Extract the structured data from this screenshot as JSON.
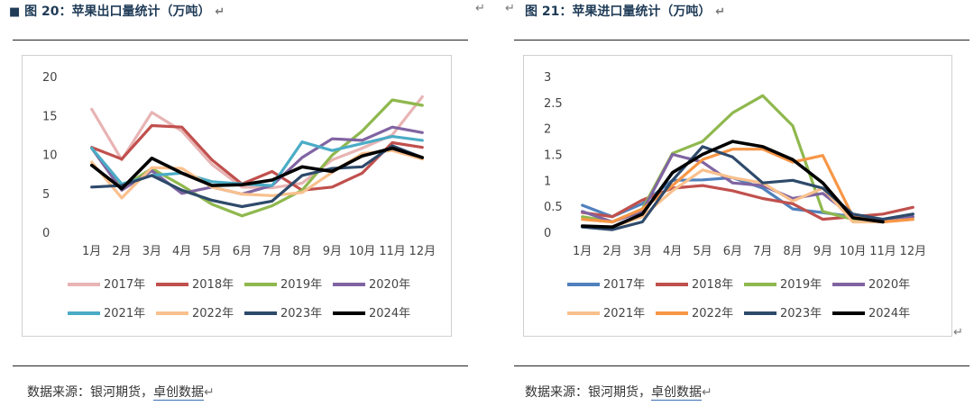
{
  "left": {
    "title_prefix": "■",
    "title": "图 20：苹果出口量统计（万吨）",
    "source_prefix": "数据来源：银河期货，",
    "source_link": "卓创数据"
  },
  "right": {
    "title": "图 21：苹果进口量统计（万吨）",
    "source_prefix": "数据来源：银河期货，",
    "source_link": "卓创数据"
  },
  "marks": {
    "para": "↵"
  },
  "chart_data": [
    {
      "type": "line",
      "title": "图 20：苹果出口量统计（万吨）",
      "categories": [
        "1月",
        "2月",
        "3月",
        "4月",
        "5月",
        "6月",
        "7月",
        "8月",
        "9月",
        "10月",
        "11月",
        "12月"
      ],
      "ylim": [
        0,
        20
      ],
      "yticks": [
        0,
        5,
        10,
        15,
        20
      ],
      "grid": false,
      "legend": "bottom",
      "series": [
        {
          "name": "2017年",
          "color": "#e8b4b4",
          "values": [
            15.8,
            9.3,
            15.4,
            13.0,
            8.7,
            5.8,
            5.7,
            6.3,
            9.3,
            10.8,
            12.5,
            17.4
          ]
        },
        {
          "name": "2018年",
          "color": "#c0504d",
          "values": [
            10.9,
            9.4,
            13.7,
            13.5,
            9.3,
            6.2,
            7.8,
            5.4,
            5.8,
            7.6,
            11.5,
            10.9
          ]
        },
        {
          "name": "2019年",
          "color": "#8fb84e",
          "values": [
            10.8,
            5.7,
            8.2,
            6.0,
            3.6,
            2.1,
            3.4,
            5.4,
            9.9,
            13.0,
            17.0,
            16.3
          ]
        },
        {
          "name": "2020年",
          "color": "#8064a2",
          "values": [
            10.8,
            5.4,
            7.9,
            5.0,
            5.8,
            4.9,
            6.0,
            9.6,
            12.0,
            11.8,
            13.5,
            12.8
          ]
        },
        {
          "name": "2021年",
          "color": "#4bacc6",
          "values": [
            10.8,
            6.2,
            7.3,
            7.6,
            6.5,
            6.2,
            6.0,
            11.6,
            10.5,
            11.4,
            12.3,
            11.8
          ]
        },
        {
          "name": "2022年",
          "color": "#f9c08d",
          "values": [
            9.0,
            4.4,
            8.3,
            8.2,
            5.8,
            4.9,
            4.7,
            5.1,
            7.7,
            10.1,
            10.5,
            9.4
          ]
        },
        {
          "name": "2023年",
          "color": "#2e4a6b",
          "values": [
            5.8,
            6.0,
            7.3,
            5.4,
            4.1,
            3.3,
            4.0,
            7.3,
            8.2,
            8.4,
            11.1,
            9.6
          ]
        },
        {
          "name": "2024年",
          "color": "#000000",
          "values": [
            8.6,
            5.6,
            9.5,
            7.6,
            6.0,
            6.1,
            6.7,
            8.4,
            7.8,
            9.8,
            10.8,
            9.6
          ]
        }
      ]
    },
    {
      "type": "line",
      "title": "图 21：苹果进口量统计（万吨）",
      "categories": [
        "1月",
        "2月",
        "3月",
        "4月",
        "5月",
        "6月",
        "7月",
        "8月",
        "9月",
        "10月",
        "11月",
        "12月"
      ],
      "ylim": [
        0,
        3
      ],
      "yticks": [
        0,
        0.5,
        1,
        1.5,
        2,
        2.5,
        3
      ],
      "grid": false,
      "legend": "bottom",
      "series": [
        {
          "name": "2017年",
          "color": "#4f81bd",
          "values": [
            0.52,
            0.3,
            0.55,
            1.0,
            1.01,
            1.05,
            0.85,
            0.45,
            0.38,
            0.3,
            0.25,
            0.35
          ]
        },
        {
          "name": "2018年",
          "color": "#c0504d",
          "values": [
            0.38,
            0.3,
            0.62,
            0.85,
            0.9,
            0.8,
            0.65,
            0.55,
            0.25,
            0.3,
            0.35,
            0.48
          ]
        },
        {
          "name": "2019年",
          "color": "#8fb84e",
          "values": [
            0.3,
            0.2,
            0.45,
            1.52,
            1.75,
            2.3,
            2.63,
            2.05,
            0.4,
            0.25,
            0.2,
            0.3
          ]
        },
        {
          "name": "2020年",
          "color": "#8064a2",
          "values": [
            0.4,
            0.2,
            0.4,
            1.5,
            1.35,
            0.95,
            0.9,
            0.65,
            0.75,
            0.3,
            0.2,
            0.3
          ]
        },
        {
          "name": "2021年",
          "color": "#f9c08d",
          "values": [
            0.1,
            0.1,
            0.3,
            0.8,
            1.2,
            1.05,
            0.95,
            0.6,
            0.85,
            0.2,
            0.2,
            0.25
          ]
        },
        {
          "name": "2022年",
          "color": "#f79646",
          "values": [
            0.25,
            0.2,
            0.45,
            0.9,
            1.4,
            1.6,
            1.6,
            1.35,
            1.48,
            0.3,
            0.2,
            0.25
          ]
        },
        {
          "name": "2023年",
          "color": "#2e4a6b",
          "values": [
            0.1,
            0.05,
            0.2,
            1.0,
            1.65,
            1.45,
            0.95,
            1.0,
            0.85,
            0.35,
            0.25,
            0.35
          ]
        },
        {
          "name": "2024年",
          "color": "#000000",
          "values": [
            0.12,
            0.1,
            0.35,
            1.15,
            1.5,
            1.75,
            1.65,
            1.4,
            0.95,
            0.28,
            0.2,
            null
          ]
        }
      ]
    }
  ]
}
